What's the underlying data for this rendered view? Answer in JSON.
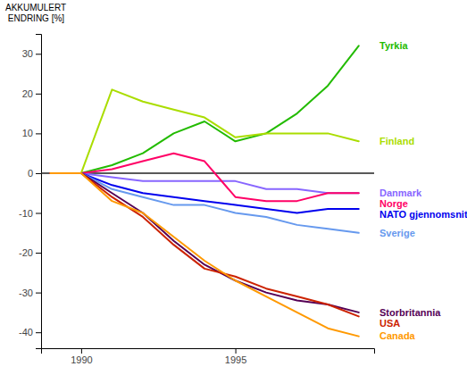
{
  "chart_data": {
    "type": "line",
    "y_label": "AKKUMULERT\n ENDRING [%]",
    "x": [
      1989,
      1990,
      1991,
      1992,
      1993,
      1994,
      1995,
      1996,
      1997,
      1998,
      1999
    ],
    "xlim": [
      1988.7,
      1999.5
    ],
    "xticks": [
      1990,
      1995
    ],
    "ylim": [
      -44,
      35
    ],
    "yticks": [
      -40,
      -30,
      -20,
      -10,
      0,
      10,
      20,
      30
    ],
    "series": [
      {
        "name": "Tyrkia",
        "color": "#22bb00",
        "values": [
          0,
          0,
          2,
          5,
          10,
          13,
          8,
          10,
          15,
          22,
          32
        ]
      },
      {
        "name": "Finland",
        "color": "#aadd00",
        "values": [
          0,
          0,
          21,
          18,
          16,
          14,
          9,
          10,
          10,
          10,
          8
        ]
      },
      {
        "name": "Danmark",
        "color": "#8866ff",
        "values": [
          0,
          0,
          -1,
          -2,
          -2,
          -2,
          -2,
          -4,
          -4,
          -5,
          -5
        ]
      },
      {
        "name": "Norge",
        "color": "#ff0066",
        "values": [
          0,
          0,
          1,
          3,
          5,
          3,
          -6,
          -7,
          -7,
          -5,
          -5
        ]
      },
      {
        "name": "NATO gjennomsnitt",
        "color": "#0000ee",
        "values": [
          0,
          0,
          -3,
          -5,
          -6,
          -7,
          -8,
          -9,
          -10,
          -9,
          -9
        ]
      },
      {
        "name": "Sverige",
        "color": "#6699ee",
        "values": [
          0,
          0,
          -4,
          -6,
          -8,
          -8,
          -10,
          -11,
          -13,
          -14,
          -15
        ]
      },
      {
        "name": "Storbritannia",
        "color": "#550055",
        "values": [
          0,
          0,
          -5,
          -10,
          -17,
          -23,
          -27,
          -30,
          -32,
          -33,
          -35
        ]
      },
      {
        "name": "USA",
        "color": "#cc2200",
        "values": [
          0,
          0,
          -6,
          -11,
          -18,
          -24,
          -26,
          -29,
          -31,
          -33,
          -36
        ]
      },
      {
        "name": "Canada",
        "color": "#ff9900",
        "values": [
          0,
          0,
          -7,
          -10,
          -16,
          -22,
          -27,
          -31,
          -35,
          -39,
          -41
        ]
      }
    ]
  }
}
